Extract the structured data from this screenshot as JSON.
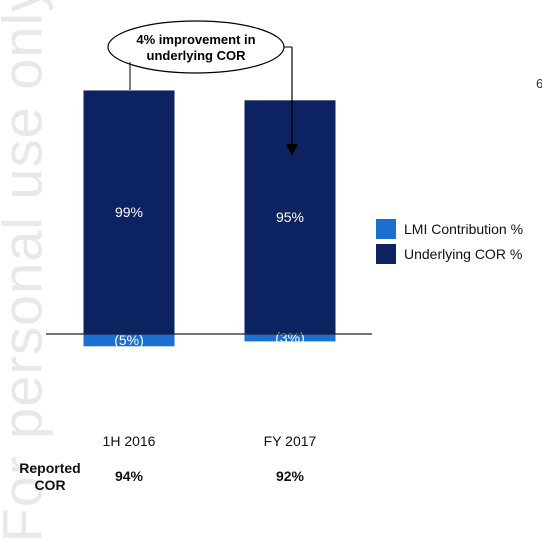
{
  "watermark": "For personal use only",
  "stray_text": "6",
  "callout": {
    "line1": "4% improvement in",
    "line2": "underlying COR"
  },
  "legend": {
    "items": [
      {
        "label": "LMI Contribution %",
        "color": "#1a6fd1",
        "icon": "square-swatch"
      },
      {
        "label": "Underlying COR %",
        "color": "#0d2260",
        "icon": "square-swatch"
      }
    ]
  },
  "reported": {
    "label_line1": "Reported",
    "label_line2": "COR",
    "values": [
      "94%",
      "92%"
    ]
  },
  "chart_data": {
    "type": "bar",
    "stacked": true,
    "categories": [
      "1H 2016",
      "FY 2017"
    ],
    "series": [
      {
        "name": "Underlying COR %",
        "values": [
          99,
          95
        ],
        "labels": [
          "99%",
          "95%"
        ],
        "color": "#0d2260"
      },
      {
        "name": "LMI Contribution %",
        "values": [
          -5,
          -3
        ],
        "labels": [
          "(5%)",
          "(3%)"
        ],
        "color": "#1a6fd1"
      }
    ],
    "title": "",
    "xlabel": "",
    "ylabel": "",
    "grid": false,
    "legend_position": "right"
  }
}
